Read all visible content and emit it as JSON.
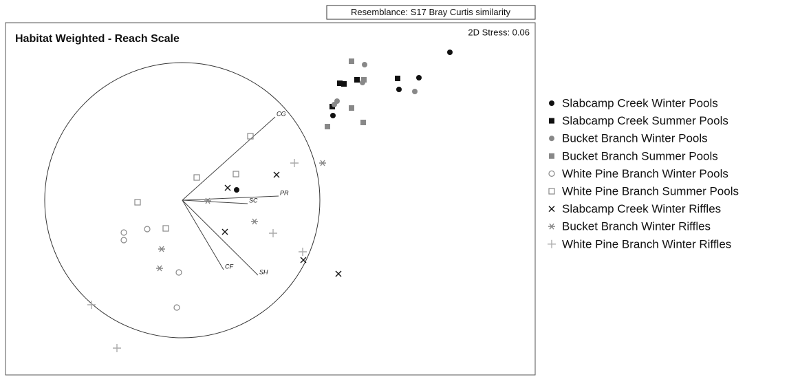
{
  "chart_data": {
    "type": "scatter",
    "title": "Habitat Weighted - Reach Scale",
    "resemblance": "Resemblance: S17 Bray Curtis similarity",
    "stress": "2D Stress: 0.06",
    "xlim": [
      0,
      770
    ],
    "ylim": [
      0,
      512
    ],
    "vector_origin": {
      "x": 257,
      "y": 254
    },
    "circle_radius": 200,
    "vectors": {
      "names": [
        "CG",
        "PR",
        "SC",
        "CF",
        "SH"
      ],
      "x": [
        392,
        397,
        352,
        317,
        367
      ],
      "y": [
        375,
        260,
        249,
        153,
        145
      ]
    },
    "series": [
      {
        "name": "Slabcamp Creek Winter Pools",
        "color": "#111111",
        "marker": "circle-filled",
        "x": [
          646,
          601,
          572,
          476,
          336
        ],
        "y": [
          469,
          432,
          415,
          377,
          269
        ]
      },
      {
        "name": "Slabcamp Creek Summer Pools",
        "color": "#111111",
        "marker": "square-filled",
        "x": [
          570,
          486,
          492,
          511,
          475
        ],
        "y": [
          431,
          424,
          423,
          429,
          390
        ]
      },
      {
        "name": "Bucket Branch Winter Pools",
        "color": "#888888",
        "marker": "circle-filled",
        "x": [
          522,
          519,
          595,
          482,
          478
        ],
        "y": [
          451,
          425,
          412,
          398,
          393
        ]
      },
      {
        "name": "Bucket Branch Summer Pools",
        "color": "#888888",
        "marker": "square-filled",
        "x": [
          503,
          521,
          503,
          520,
          468
        ],
        "y": [
          456,
          429,
          388,
          367,
          361
        ]
      },
      {
        "name": "White Pine Branch Winter Pools",
        "color": "#888888",
        "marker": "circle-open",
        "x": [
          172,
          172,
          206,
          252,
          249
        ],
        "y": [
          207,
          196,
          212,
          149,
          98
        ]
      },
      {
        "name": "White Pine Branch Summer Pools",
        "color": "#888888",
        "marker": "square-open",
        "x": [
          356,
          278,
          335,
          192,
          233
        ],
        "y": [
          347,
          287,
          292,
          251,
          213
        ]
      },
      {
        "name": "Slabcamp Creek Winter Riffles",
        "color": "#111111",
        "marker": "cross",
        "x": [
          394,
          323,
          319,
          433,
          484
        ],
        "y": [
          291,
          272,
          208,
          167,
          147
        ]
      },
      {
        "name": "Bucket Branch  Winter Riffles",
        "color": "#888888",
        "marker": "star",
        "x": [
          461,
          294,
          362,
          227,
          224
        ],
        "y": [
          308,
          253,
          223,
          183,
          155
        ]
      },
      {
        "name": "White Pine Branch Winter Riffles",
        "color": "#aaaaaa",
        "marker": "plus",
        "x": [
          420,
          389,
          432,
          125,
          162
        ],
        "y": [
          308,
          206,
          179,
          102,
          39
        ]
      }
    ]
  }
}
